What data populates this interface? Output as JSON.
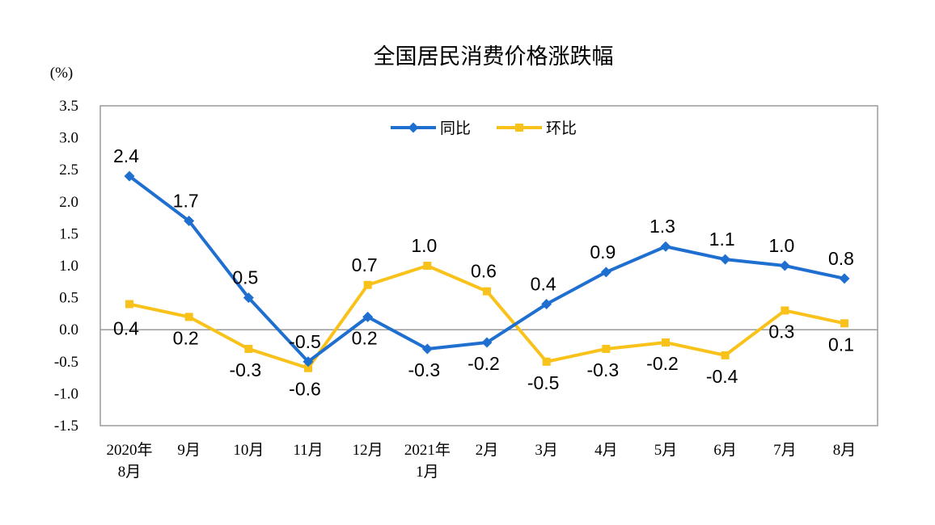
{
  "chart_data": {
    "type": "line",
    "title": "全国居民消费价格涨跌幅",
    "ylabel": "(%)",
    "xlabel": "",
    "ylim": [
      -1.5,
      3.5
    ],
    "yticks": [
      "3.5",
      "3.0",
      "2.5",
      "2.0",
      "1.5",
      "1.0",
      "0.5",
      "0.0",
      "-0.5",
      "-1.0",
      "-1.5"
    ],
    "categories": [
      [
        "2020年",
        "8月"
      ],
      [
        "9月"
      ],
      [
        "10月"
      ],
      [
        "11月"
      ],
      [
        "12月"
      ],
      [
        "2021年",
        "1月"
      ],
      [
        "2月"
      ],
      [
        "3月"
      ],
      [
        "4月"
      ],
      [
        "5月"
      ],
      [
        "6月"
      ],
      [
        "7月"
      ],
      [
        "8月"
      ]
    ],
    "grid": false,
    "legend_position": "top-center",
    "series": [
      {
        "name": "同比",
        "color": "#1f6fd1",
        "marker": "diamond",
        "values": [
          2.4,
          1.7,
          0.5,
          -0.5,
          0.2,
          -0.3,
          -0.2,
          0.4,
          0.9,
          1.3,
          1.1,
          1.0,
          0.8
        ],
        "labels": [
          "2.4",
          "1.7",
          "0.5",
          "-0.5",
          "0.2",
          "-0.3",
          "-0.2",
          "0.4",
          "0.9",
          "1.3",
          "1.1",
          "1.0",
          "0.8"
        ]
      },
      {
        "name": "环比",
        "color": "#f9c21b",
        "marker": "square",
        "values": [
          0.4,
          0.2,
          -0.3,
          -0.6,
          0.7,
          1.0,
          0.6,
          -0.5,
          -0.3,
          -0.2,
          -0.4,
          0.3,
          0.1
        ],
        "labels": [
          "0.4",
          "0.2",
          "-0.3",
          "-0.6",
          "0.7",
          "1.0",
          "0.6",
          "-0.5",
          "-0.3",
          "-0.2",
          "-0.4",
          "0.3",
          "0.1"
        ]
      }
    ]
  }
}
